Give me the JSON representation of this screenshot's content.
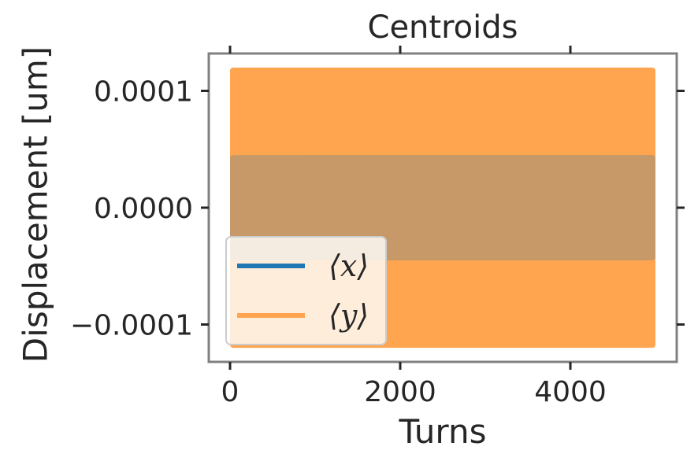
{
  "chart_data": {
    "type": "line",
    "title": "Centroids",
    "xlabel": "Turns",
    "ylabel": "Displacement [um]",
    "xlim": [
      -250,
      5250
    ],
    "ylim": [
      -0.000132,
      0.000132
    ],
    "xticks": [
      0,
      2000,
      4000
    ],
    "xtick_labels": [
      "0",
      "2000",
      "4000"
    ],
    "yticks": [
      0.0001,
      0.0,
      -0.0001
    ],
    "ytick_labels": [
      "0.0001",
      "0.0000",
      "−0.0001"
    ],
    "grid": false,
    "legend_position": "lower-left",
    "series": [
      {
        "name": "⟨x⟩",
        "color": "#1f77b4",
        "x_range": [
          0,
          5000
        ],
        "envelope": [
          -4.5e-05,
          4.5e-05
        ],
        "style": "dense oscillation"
      },
      {
        "name": "⟨y⟩",
        "color": "#ffa550",
        "x_range": [
          0,
          5000
        ],
        "envelope": [
          -0.00012,
          0.00012
        ],
        "style": "dense oscillation"
      }
    ]
  }
}
